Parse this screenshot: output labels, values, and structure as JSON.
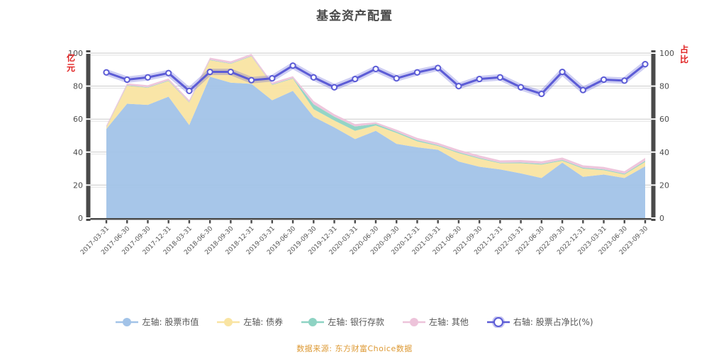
{
  "title": "基金资产配置",
  "watermark": "数据来源: 东方财富Choice数据",
  "axes": {
    "left": {
      "ticks": [
        0,
        20,
        40,
        60,
        80,
        100
      ],
      "unit": "亿元",
      "unit_color": "#e02020"
    },
    "right": {
      "ticks": [
        0,
        20,
        40,
        60,
        80,
        100
      ],
      "unit": "占比",
      "unit_color": "#e02020"
    }
  },
  "legend": {
    "items": [
      {
        "label": "左轴: 股票市值",
        "color": "#a2c3e8",
        "style": "filled"
      },
      {
        "label": "左轴: 债券",
        "color": "#f9e4a2",
        "style": "filled"
      },
      {
        "label": "左轴: 银行存款",
        "color": "#8ed3c3",
        "style": "filled"
      },
      {
        "label": "左轴: 其他",
        "color": "#edc3da",
        "style": "filled"
      },
      {
        "label": "右轴: 股票占净比(%)",
        "color": "#5c5cd6",
        "style": "hollow"
      }
    ]
  },
  "chart_data": {
    "type": "area",
    "title": "基金资产配置",
    "xlabel": "",
    "ylabel_left": "亿元",
    "ylabel_right": "占比",
    "ylim_left": [
      0,
      100
    ],
    "ylim_right": [
      0,
      100
    ],
    "grid": true,
    "legend_position": "bottom",
    "x": [
      "2017-03-31",
      "2017-06-30",
      "2017-09-30",
      "2017-12-31",
      "2018-03-31",
      "2018-06-30",
      "2018-09-30",
      "2018-12-31",
      "2019-03-31",
      "2019-06-30",
      "2019-09-30",
      "2019-12-31",
      "2020-03-31",
      "2020-06-30",
      "2020-09-30",
      "2020-12-31",
      "2021-03-31",
      "2021-06-30",
      "2021-09-30",
      "2021-12-31",
      "2022-03-31",
      "2022-06-30",
      "2022-09-30",
      "2022-12-31",
      "2023-03-31",
      "2023-06-30",
      "2023-09-30"
    ],
    "series": [
      {
        "name": "左轴: 股票市值",
        "type": "area",
        "stack": true,
        "axis": "left",
        "color": "#a2c3e8",
        "values": [
          54.0,
          69.3,
          68.6,
          73.6,
          56.4,
          85.7,
          82.1,
          81.4,
          71.4,
          77.1,
          61.4,
          55.0,
          47.9,
          52.9,
          45.0,
          42.9,
          41.4,
          34.3,
          31.1,
          29.5,
          27.1,
          24.3,
          33.6,
          25.0,
          26.4,
          24.3,
          31.4
        ]
      },
      {
        "name": "左轴: 债券",
        "type": "area",
        "stack": true,
        "axis": "left",
        "color": "#f9e4a2",
        "values": [
          0.9,
          10.9,
          10.4,
          9.5,
          13.6,
          10.0,
          11.4,
          16.6,
          9.3,
          7.4,
          4.6,
          4.1,
          5.0,
          3.2,
          6.6,
          3.6,
          2.3,
          5.1,
          4.9,
          3.7,
          6.1,
          8.1,
          1.1,
          5.0,
          2.6,
          2.1,
          2.6
        ]
      },
      {
        "name": "左轴: 银行存款",
        "type": "area",
        "stack": true,
        "axis": "left",
        "color": "#8ed3c3",
        "values": [
          0.2,
          0.3,
          0.3,
          0.3,
          0.3,
          0.3,
          0.3,
          0.3,
          0.3,
          0.3,
          3.0,
          2.4,
          2.6,
          1.0,
          0.7,
          0.7,
          0.5,
          0.5,
          0.5,
          0.4,
          0.5,
          0.5,
          0.5,
          0.5,
          0.5,
          0.5,
          0.7
        ]
      },
      {
        "name": "左轴: 其他",
        "type": "area",
        "stack": true,
        "axis": "left",
        "color": "#edc3da",
        "values": [
          1.0,
          1.2,
          1.2,
          1.2,
          1.2,
          1.2,
          1.2,
          1.2,
          1.2,
          1.2,
          2.0,
          1.5,
          1.5,
          1.0,
          1.3,
          1.4,
          1.4,
          1.5,
          1.5,
          1.4,
          1.5,
          1.5,
          1.5,
          1.5,
          1.5,
          1.5,
          1.8
        ]
      },
      {
        "name": "右轴: 股票占净比(%)",
        "type": "line",
        "stack": false,
        "axis": "right",
        "color": "#5c5cd6",
        "values": [
          88.3,
          83.9,
          85.3,
          87.9,
          77.1,
          88.6,
          88.6,
          83.6,
          84.7,
          92.4,
          85.3,
          79.3,
          84.3,
          90.4,
          84.7,
          88.3,
          91.0,
          80.0,
          84.3,
          85.3,
          79.3,
          75.3,
          88.6,
          77.6,
          83.9,
          83.3,
          93.3
        ]
      }
    ]
  },
  "colors": {
    "axis_bar": "#4a4a4a",
    "grid": "#c9c9c9",
    "tick_text": "#4d4d4d",
    "x_label_text": "#555555",
    "line_glow": "rgba(92,92,214,0.30)",
    "marker_fill": "#ffffff",
    "background": "#ffffff"
  }
}
